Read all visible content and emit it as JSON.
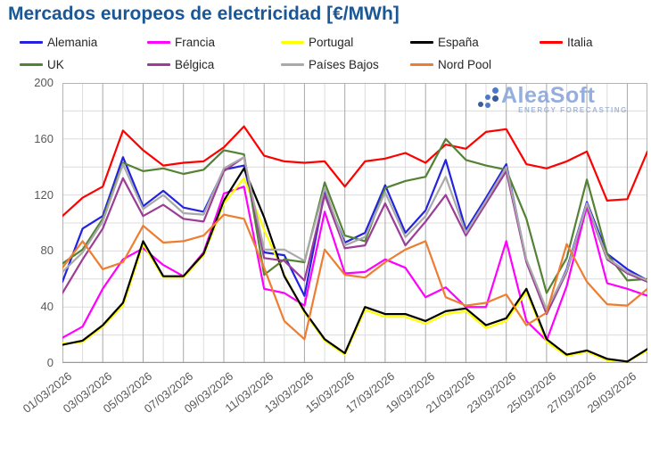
{
  "title": "Mercados europeos de electricidad [€/MWh]",
  "watermark": {
    "name": "AleaSoft",
    "tagline": "ENERGY FORECASTING"
  },
  "colors": {
    "title": "#1a5796",
    "grid_light": "#dcdcdc",
    "grid_dark": "#a8a8a8",
    "plot_border": "#b4b4b4",
    "axis_text": "#595959",
    "legend_text": "#262626",
    "logo_text": "#8faadc",
    "logo_dot_dark": "#2f5597",
    "logo_dot_mid": "#4472c4"
  },
  "chart_data": {
    "type": "line",
    "title": "Mercados europeos de electricidad [€/MWh]",
    "xlabel": "",
    "ylabel": "",
    "ylim": [
      0,
      200
    ],
    "y_ticks": [
      0,
      40,
      80,
      120,
      160,
      200
    ],
    "grid_y_step": 20,
    "grid": true,
    "legend_position": "top",
    "legend_rows": 2,
    "n_points": 30,
    "x_range_start": "01/03/2026",
    "x_tick_day_indexes": [
      0,
      2,
      4,
      6,
      8,
      10,
      12,
      14,
      16,
      18,
      20,
      22,
      24,
      26,
      28
    ],
    "x_tick_labels": [
      "01/03/2026",
      "03/03/2026",
      "05/03/2026",
      "07/03/2026",
      "09/03/2026",
      "11/03/2026",
      "13/03/2026",
      "15/03/2026",
      "17/03/2026",
      "19/03/2026",
      "21/03/2026",
      "23/03/2026",
      "25/03/2026",
      "27/03/2026",
      "29/03/2026"
    ],
    "series": [
      {
        "name": "Alemania",
        "color": "#2222e0",
        "values": [
          58,
          96,
          105,
          147,
          112,
          123,
          111,
          108,
          138,
          141,
          79,
          77,
          48,
          122,
          86,
          93,
          127,
          93,
          109,
          145,
          95,
          118,
          142,
          73,
          36,
          67,
          115,
          78,
          67,
          59
        ]
      },
      {
        "name": "Francia",
        "color": "#ff00ff",
        "values": [
          18,
          26,
          53,
          74,
          82,
          70,
          62,
          79,
          121,
          126,
          53,
          50,
          41,
          108,
          64,
          65,
          74,
          68,
          47,
          54,
          40,
          40,
          87,
          30,
          16,
          55,
          112,
          57,
          53,
          48
        ]
      },
      {
        "name": "Portugal",
        "color": "#ffff00",
        "values": [
          14,
          15,
          26,
          41,
          85,
          61,
          61,
          77,
          114,
          132,
          95,
          63,
          36,
          16,
          6,
          38,
          33,
          33,
          28,
          35,
          37,
          25,
          30,
          51,
          15,
          5,
          8,
          2,
          1,
          9
        ]
      },
      {
        "name": "España",
        "color": "#000000",
        "values": [
          13,
          16,
          27,
          43,
          87,
          62,
          62,
          78,
          116,
          139,
          104,
          62,
          37,
          17,
          7,
          40,
          35,
          35,
          30,
          37,
          39,
          27,
          32,
          53,
          17,
          6,
          9,
          3,
          1,
          10
        ]
      },
      {
        "name": "Italia",
        "color": "#ff0000",
        "values": [
          105,
          118,
          126,
          166,
          152,
          141,
          143,
          144,
          154,
          169,
          148,
          144,
          143,
          144,
          126,
          144,
          146,
          150,
          143,
          156,
          153,
          165,
          167,
          142,
          139,
          144,
          151,
          116,
          117,
          151
        ]
      },
      {
        "name": "UK",
        "color": "#548235",
        "values": [
          71,
          81,
          103,
          143,
          137,
          139,
          135,
          138,
          152,
          149,
          63,
          74,
          72,
          129,
          91,
          87,
          125,
          130,
          133,
          160,
          145,
          141,
          138,
          103,
          50,
          75,
          131,
          78,
          59,
          60
        ]
      },
      {
        "name": "Bélgica",
        "color": "#9b3d97",
        "values": [
          50,
          74,
          96,
          132,
          105,
          113,
          103,
          101,
          137,
          147,
          75,
          73,
          59,
          120,
          82,
          84,
          114,
          84,
          101,
          120,
          91,
          114,
          137,
          72,
          35,
          65,
          113,
          74,
          64,
          58
        ]
      },
      {
        "name": "Países Bajos",
        "color": "#a9a9a9",
        "values": [
          65,
          79,
          101,
          142,
          110,
          120,
          107,
          106,
          139,
          147,
          81,
          81,
          73,
          125,
          84,
          90,
          122,
          90,
          105,
          133,
          93,
          116,
          140,
          74,
          38,
          66,
          114,
          75,
          65,
          59
        ]
      },
      {
        "name": "Nord Pool",
        "color": "#ed7d31",
        "values": [
          68,
          87,
          67,
          72,
          98,
          86,
          87,
          91,
          106,
          103,
          68,
          30,
          17,
          81,
          63,
          61,
          72,
          81,
          87,
          47,
          41,
          43,
          49,
          27,
          36,
          85,
          58,
          42,
          41,
          53
        ]
      }
    ]
  }
}
